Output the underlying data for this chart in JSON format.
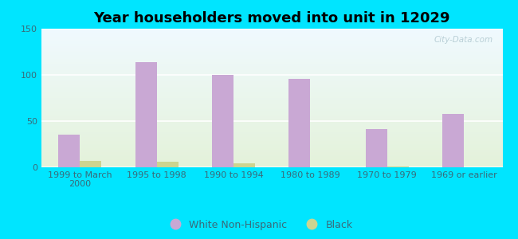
{
  "title": "Year householders moved into unit in 12029",
  "categories": [
    "1999 to March\n2000",
    "1995 to 1998",
    "1990 to 1994",
    "1980 to 1989",
    "1970 to 1979",
    "1969 or earlier"
  ],
  "white_values": [
    35,
    114,
    100,
    96,
    41,
    58
  ],
  "black_values": [
    7,
    6,
    4,
    0,
    1,
    0
  ],
  "white_color": "#c9a8d4",
  "black_color": "#cdd490",
  "bg_outer": "#00e5ff",
  "ylim": [
    0,
    150
  ],
  "yticks": [
    0,
    50,
    100,
    150
  ],
  "bar_width": 0.28,
  "title_fontsize": 13,
  "tick_fontsize": 8,
  "legend_fontsize": 9,
  "watermark": "City-Data.com",
  "grid_color": "#cccccc",
  "tick_color": "#5a8a9a",
  "label_color": "#3a6a7a"
}
